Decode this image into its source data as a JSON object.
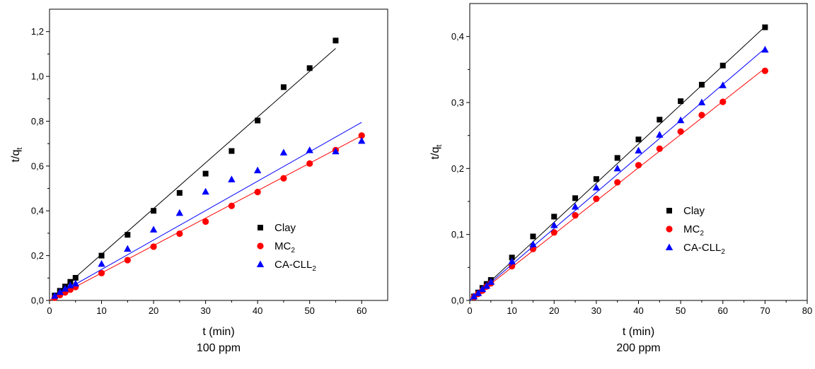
{
  "chart_data": [
    {
      "type": "scatter",
      "caption": "100 ppm",
      "xlabel": "t (min)",
      "ylabel": {
        "main": "t/q",
        "sub": "t"
      },
      "xlim": [
        0,
        65
      ],
      "ylim": [
        0,
        1.3
      ],
      "xticks": [
        0,
        10,
        20,
        30,
        40,
        50,
        60
      ],
      "yticks": [
        0.0,
        0.2,
        0.4,
        0.6,
        0.8,
        1.0,
        1.2
      ],
      "xtick_labels": [
        "0",
        "10",
        "20",
        "30",
        "40",
        "50",
        "60"
      ],
      "ytick_labels": [
        "0,0",
        "0,2",
        "0,4",
        "0,6",
        "0,8",
        "1,0",
        "1,2"
      ],
      "legend_position": "right-middle",
      "series": [
        {
          "name": "Clay",
          "sub": "",
          "marker": "square",
          "color": "#000000",
          "x": [
            1,
            2,
            3,
            4,
            5,
            10,
            15,
            20,
            25,
            30,
            35,
            40,
            45,
            50,
            55
          ],
          "y": [
            0.022,
            0.043,
            0.062,
            0.083,
            0.101,
            0.2,
            0.293,
            0.4,
            0.48,
            0.566,
            0.667,
            0.803,
            0.952,
            1.037,
            1.16
          ],
          "fit": {
            "x": [
              1,
              55
            ],
            "y": [
              0.022,
              1.125
            ]
          }
        },
        {
          "name": "MC",
          "sub": "2",
          "marker": "circle",
          "color": "#ff0000",
          "x": [
            1,
            2,
            3,
            4,
            5,
            10,
            15,
            20,
            25,
            30,
            35,
            40,
            45,
            50,
            55,
            60
          ],
          "y": [
            0.012,
            0.024,
            0.036,
            0.048,
            0.06,
            0.122,
            0.18,
            0.24,
            0.298,
            0.352,
            0.422,
            0.484,
            0.545,
            0.611,
            0.671,
            0.736
          ],
          "fit": {
            "x": [
              0,
              60
            ],
            "y": [
              0.0,
              0.735
            ]
          }
        },
        {
          "name": "CA-CLL",
          "sub": "2",
          "marker": "triangle",
          "color": "#0000ff",
          "x": [
            1,
            2,
            3,
            4,
            5,
            10,
            15,
            20,
            25,
            30,
            35,
            40,
            45,
            50,
            55,
            60
          ],
          "y": [
            0.02,
            0.037,
            0.052,
            0.067,
            0.075,
            0.163,
            0.23,
            0.316,
            0.39,
            0.485,
            0.54,
            0.58,
            0.66,
            0.67,
            0.665,
            0.712
          ],
          "fit": {
            "x": [
              1,
              60
            ],
            "y": [
              0.02,
              0.795
            ]
          }
        }
      ]
    },
    {
      "type": "scatter",
      "caption": "200 ppm",
      "xlabel": "t (min)",
      "ylabel": {
        "main": "t/q",
        "sub": "t"
      },
      "xlim": [
        0,
        80
      ],
      "ylim": [
        0,
        0.45
      ],
      "xticks": [
        0,
        10,
        20,
        30,
        40,
        50,
        60,
        70,
        80
      ],
      "yticks": [
        0.0,
        0.1,
        0.2,
        0.3,
        0.4
      ],
      "xtick_labels": [
        "0",
        "10",
        "20",
        "30",
        "40",
        "50",
        "60",
        "70",
        "80"
      ],
      "ytick_labels": [
        "0,0",
        "0,1",
        "0,2",
        "0,3",
        "0,4"
      ],
      "legend_position": "right-middle",
      "series": [
        {
          "name": "Clay",
          "sub": "",
          "marker": "square",
          "color": "#000000",
          "x": [
            1,
            2,
            3,
            4,
            5,
            10,
            15,
            20,
            25,
            30,
            35,
            40,
            45,
            50,
            55,
            60,
            70
          ],
          "y": [
            0.006,
            0.012,
            0.019,
            0.025,
            0.031,
            0.065,
            0.097,
            0.127,
            0.155,
            0.184,
            0.216,
            0.244,
            0.274,
            0.302,
            0.327,
            0.356,
            0.414
          ],
          "fit": {
            "x": [
              0,
              70
            ],
            "y": [
              0.0,
              0.415
            ]
          }
        },
        {
          "name": "MC",
          "sub": "2",
          "marker": "circle",
          "color": "#ff0000",
          "x": [
            1,
            2,
            3,
            4,
            5,
            10,
            15,
            20,
            25,
            30,
            35,
            40,
            45,
            50,
            55,
            60,
            70
          ],
          "y": [
            0.005,
            0.01,
            0.015,
            0.021,
            0.026,
            0.052,
            0.078,
            0.103,
            0.129,
            0.154,
            0.179,
            0.205,
            0.23,
            0.256,
            0.281,
            0.301,
            0.348
          ],
          "fit": {
            "x": [
              0,
              70
            ],
            "y": [
              0.0,
              0.352
            ]
          }
        },
        {
          "name": "CA-CLL",
          "sub": "2",
          "marker": "triangle",
          "color": "#0000ff",
          "x": [
            1,
            2,
            3,
            4,
            5,
            10,
            15,
            20,
            25,
            30,
            35,
            40,
            45,
            50,
            55,
            60,
            70
          ],
          "y": [
            0.006,
            0.011,
            0.017,
            0.022,
            0.028,
            0.059,
            0.085,
            0.114,
            0.142,
            0.171,
            0.2,
            0.227,
            0.251,
            0.273,
            0.3,
            0.326,
            0.38
          ],
          "fit": {
            "x": [
              0,
              70
            ],
            "y": [
              0.0,
              0.382
            ]
          }
        }
      ]
    }
  ]
}
